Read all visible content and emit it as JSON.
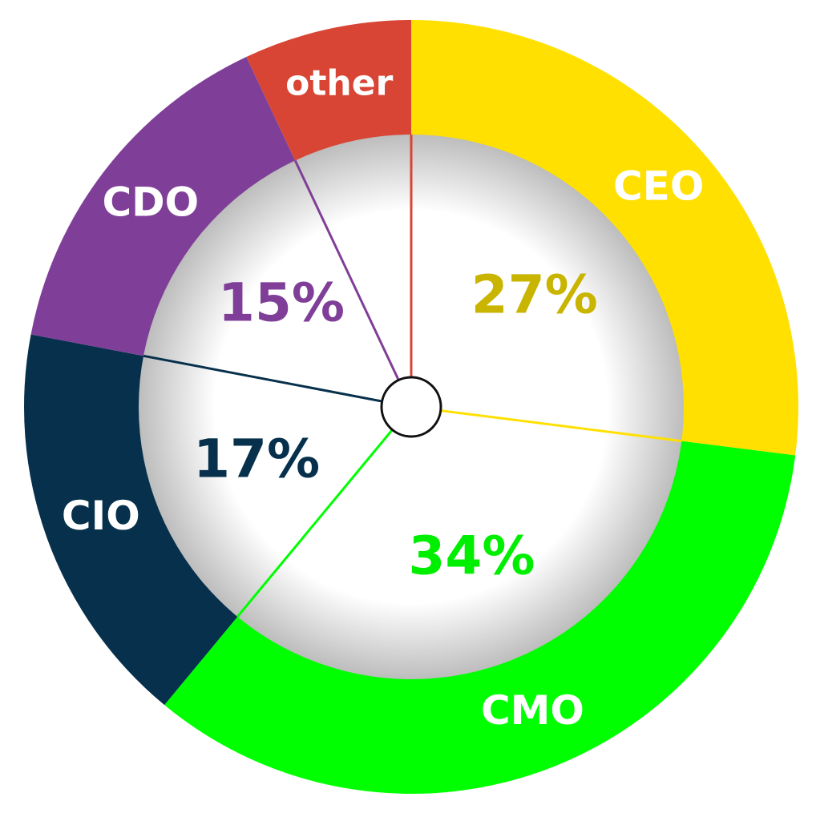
{
  "chart_data": {
    "type": "pie",
    "categories": [
      "CEO",
      "CMO",
      "CIO",
      "CDO",
      "other"
    ],
    "values": [
      27,
      34,
      17,
      15,
      7
    ],
    "value_labels": [
      "27%",
      "34%",
      "17%",
      "15%",
      null
    ],
    "colors": [
      "#ffe000",
      "#00ff00",
      "#06304c",
      "#7f3f98",
      "#d94535"
    ],
    "label_colors": [
      "#c9b400",
      "#00ee00",
      "#06304c",
      "#7f3f98",
      "#d94535"
    ]
  }
}
